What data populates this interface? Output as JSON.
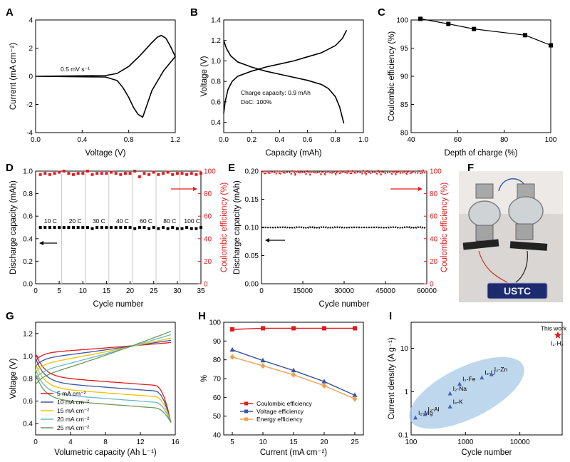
{
  "colors": {
    "black": "#000000",
    "red": "#e31a1c",
    "blue": "#3b55a3",
    "orange": "#f0a04b",
    "ellipse": "#a9c9e6",
    "label_blue": "#4a63b0"
  },
  "chart_data": [
    {
      "panel": "A",
      "type": "line",
      "xlabel": "Voltage (V)",
      "ylabel": "Current (mA cm⁻²)",
      "xlim": [
        0,
        1.2
      ],
      "ylim": [
        -4,
        4
      ],
      "xticks": [
        "0.0",
        "0.4",
        "0.8",
        "1.2"
      ],
      "yticks": [
        "-4",
        "-2",
        "0",
        "2",
        "4"
      ],
      "annotation": "0.5 mV s⁻¹",
      "series": [
        {
          "values_x": [
            0,
            0.6,
            0.7,
            0.8,
            0.9,
            1.0,
            1.05,
            1.08,
            1.12,
            1.16,
            1.2
          ],
          "values_y": [
            0.0,
            0.05,
            0.2,
            0.7,
            1.5,
            2.4,
            2.8,
            2.9,
            2.7,
            2.1,
            1.4
          ]
        },
        {
          "values_x": [
            1.2,
            1.1,
            1.0,
            0.95,
            0.92,
            0.88,
            0.84,
            0.8,
            0.75,
            0.7,
            0.6,
            0
          ],
          "values_y": [
            1.4,
            0.4,
            -1.0,
            -2.2,
            -2.9,
            -2.7,
            -2.2,
            -1.5,
            -0.8,
            -0.3,
            -0.05,
            0.0
          ]
        }
      ]
    },
    {
      "panel": "B",
      "type": "line",
      "xlabel": "Capacity (mAh)",
      "ylabel": "Voltage (V)",
      "xlim": [
        0,
        1.0
      ],
      "ylim": [
        0.3,
        1.4
      ],
      "xticks": [
        "0.0",
        "0.2",
        "0.4",
        "0.6",
        "0.8",
        "1.0"
      ],
      "yticks": [
        "0.4",
        "0.6",
        "0.8",
        "1.0",
        "1.2",
        "1.4"
      ],
      "annotation": [
        "Charge capacity: 0.9 mAh",
        "DoC: 100%"
      ],
      "series": [
        {
          "values_x": [
            0,
            0.01,
            0.03,
            0.06,
            0.1,
            0.2,
            0.3,
            0.4,
            0.5,
            0.6,
            0.7,
            0.8,
            0.85,
            0.88
          ],
          "values_y": [
            0.49,
            0.6,
            0.72,
            0.8,
            0.85,
            0.9,
            0.94,
            0.97,
            1.0,
            1.04,
            1.08,
            1.15,
            1.22,
            1.3
          ]
        },
        {
          "values_x": [
            0,
            0.02,
            0.05,
            0.1,
            0.2,
            0.3,
            0.4,
            0.5,
            0.6,
            0.7,
            0.75,
            0.8,
            0.83,
            0.86
          ],
          "values_y": [
            1.2,
            1.12,
            1.05,
            0.99,
            0.94,
            0.9,
            0.87,
            0.84,
            0.81,
            0.77,
            0.73,
            0.65,
            0.55,
            0.39
          ]
        }
      ]
    },
    {
      "panel": "C",
      "type": "line",
      "xlabel": "Depth of charge (%)",
      "ylabel": "Coulombic efficiency (%)",
      "xlim": [
        40,
        100
      ],
      "ylim": [
        80,
        100
      ],
      "xticks": [
        "40",
        "60",
        "80",
        "100"
      ],
      "yticks": [
        "80",
        "85",
        "90",
        "95",
        "100"
      ],
      "x": [
        44,
        56,
        67,
        89,
        100
      ],
      "values": [
        100.2,
        99.3,
        98.4,
        97.3,
        95.5
      ]
    },
    {
      "panel": "D",
      "type": "scatter",
      "xlabel": "Cycle number",
      "ylabel": "Discharge capacity (mAh)",
      "y2label": "Coulombic efficiency (%)",
      "xlim": [
        0,
        35
      ],
      "ylim": [
        0,
        1.0
      ],
      "y2lim": [
        0,
        100
      ],
      "xticks": [
        "0",
        "5",
        "10",
        "15",
        "20",
        "25",
        "30",
        "35"
      ],
      "yticks": [
        "0.0",
        "0.2",
        "0.4",
        "0.6",
        "0.8",
        "1.0"
      ],
      "y2ticks": [
        "0",
        "20",
        "40",
        "60",
        "80",
        "100"
      ],
      "rate_labels": [
        "10 C",
        "20 C",
        "30 C",
        "40 C",
        "60 C",
        "80 C",
        "100 C"
      ],
      "dividers": [
        5.5,
        10.5,
        15.5,
        20.5,
        25.5,
        30.5
      ],
      "capacity": [
        0.5,
        0.5,
        0.5,
        0.5,
        0.5,
        0.5,
        0.5,
        0.5,
        0.5,
        0.5,
        0.5,
        0.49,
        0.5,
        0.5,
        0.5,
        0.5,
        0.5,
        0.5,
        0.5,
        0.5,
        0.49,
        0.5,
        0.5,
        0.49,
        0.5,
        0.49,
        0.5,
        0.49,
        0.5,
        0.49,
        0.49,
        0.5,
        0.49,
        0.49,
        0.5
      ],
      "efficiency": [
        97,
        98,
        97,
        98,
        99,
        100,
        98,
        97,
        98,
        98,
        100,
        97,
        98,
        98,
        98,
        99,
        98,
        97,
        98,
        98,
        100,
        95,
        98,
        97,
        99,
        97,
        98,
        99,
        97,
        98,
        98,
        97,
        98,
        97,
        98
      ]
    },
    {
      "panel": "E",
      "type": "scatter",
      "xlabel": "Cycle number",
      "ylabel": "Discharge capacity (mAh)",
      "y2label": "Coulombic efficiency (%)",
      "xlim": [
        0,
        60000
      ],
      "ylim": [
        0,
        0.2
      ],
      "y2lim": [
        0,
        100
      ],
      "xticks": [
        "0",
        "15000",
        "30000",
        "45000",
        "60000"
      ],
      "yticks": [
        "0.00",
        "0.05",
        "0.10",
        "0.15",
        "0.20"
      ],
      "y2ticks": [
        "0",
        "20",
        "40",
        "60",
        "80",
        "100"
      ],
      "capacity_level": 0.1,
      "efficiency_level": 100
    },
    {
      "panel": "G",
      "type": "line",
      "xlabel": "Volumetric capacity (Ah L⁻¹)",
      "ylabel": "Voltage (V)",
      "xlim": [
        0,
        16
      ],
      "ylim": [
        0.3,
        1.3
      ],
      "xticks": [
        "0",
        "4",
        "8",
        "12",
        "16"
      ],
      "yticks": [
        "0.4",
        "0.6",
        "0.8",
        "1.0",
        "1.2"
      ],
      "series": [
        {
          "name": "5 mA cm⁻²",
          "color": "#e31a1c",
          "charge_start": 0.96,
          "charge_end": 1.12,
          "discharge_start": 1.02,
          "discharge_mid": 0.82
        },
        {
          "name": "10 mA cm⁻²",
          "color": "#3b55a3",
          "charge_start": 0.91,
          "charge_end": 1.14,
          "discharge_start": 0.98,
          "discharge_mid": 0.77
        },
        {
          "name": "15 mA cm⁻²",
          "color": "#f2c200",
          "charge_start": 0.86,
          "charge_end": 1.16,
          "discharge_start": 0.93,
          "discharge_mid": 0.72
        },
        {
          "name": "20 mA cm⁻²",
          "color": "#6cb6c8",
          "charge_start": 0.8,
          "charge_end": 1.19,
          "discharge_start": 0.88,
          "discharge_mid": 0.67
        },
        {
          "name": "25 mA cm⁻²",
          "color": "#6a9a58",
          "charge_start": 0.75,
          "charge_end": 1.22,
          "discharge_start": 0.84,
          "discharge_mid": 0.62
        }
      ]
    },
    {
      "panel": "H",
      "type": "line",
      "xlabel": "Current (mA cm⁻²)",
      "ylabel": "%",
      "xlim": [
        5,
        25
      ],
      "ylim": [
        40,
        100
      ],
      "xticks": [
        "5",
        "10",
        "15",
        "20",
        "25"
      ],
      "yticks": [
        "40",
        "50",
        "60",
        "70",
        "80",
        "90",
        "100"
      ],
      "x": [
        5,
        10,
        15,
        20,
        25
      ],
      "series": [
        {
          "name": "Coulombic efficiency",
          "color": "#e31a1c",
          "marker": "square",
          "values": [
            96.2,
            96.8,
            96.8,
            96.8,
            96.8
          ]
        },
        {
          "name": "Voltage efficiency",
          "color": "#3b55a3",
          "marker": "triangle",
          "values": [
            85.3,
            79.6,
            74.3,
            68.4,
            61.1
          ]
        },
        {
          "name": "Energy efficiency",
          "color": "#f0a04b",
          "marker": "diamond",
          "values": [
            81.5,
            76.8,
            72.0,
            66.2,
            59.2
          ]
        }
      ]
    },
    {
      "panel": "I",
      "type": "scatter",
      "xlabel": "Cycle number",
      "ylabel": "Current density (A g⁻¹)",
      "xscale": "log",
      "yscale": "log",
      "xlim": [
        100,
        60000
      ],
      "ylim": [
        0.1,
        40
      ],
      "xticks": [
        "100",
        "1000",
        "10000"
      ],
      "yticks": [
        "0.1",
        "1",
        "10"
      ],
      "points": [
        {
          "label": "I₂-Mg",
          "x": 120,
          "y": 0.25
        },
        {
          "label": "I₂-Al",
          "x": 180,
          "y": 0.3
        },
        {
          "label": "I₂-K",
          "x": 520,
          "y": 0.45
        },
        {
          "label": "I₂-Na",
          "x": 520,
          "y": 0.9
        },
        {
          "label": "I₂-Fe",
          "x": 780,
          "y": 1.5
        },
        {
          "label": "I₂-Li",
          "x": 2000,
          "y": 2.1
        },
        {
          "label": "I₂-Zn",
          "x": 3000,
          "y": 2.5
        },
        {
          "label": "I₂-H₂",
          "x": 50000,
          "y": 20,
          "highlight": "This work"
        }
      ]
    }
  ],
  "panels": {
    "A": "A",
    "B": "B",
    "C": "C",
    "D": "D",
    "E": "E",
    "F": "F",
    "G": "G",
    "H": "H",
    "I": "I"
  },
  "photo": {
    "display_text": "USTC"
  }
}
